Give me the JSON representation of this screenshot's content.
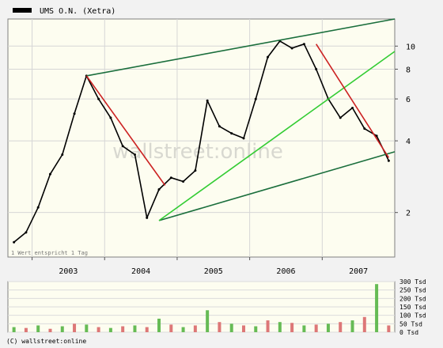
{
  "header": {
    "legend_label": "UMS O.N. (Xetra)"
  },
  "footer": {
    "copyright": "(C) wallstreet:online"
  },
  "price_panel": {
    "note": "1 Wert entspricht 1 Tag",
    "watermark": "wallstreet:online"
  },
  "colors": {
    "background": "#fdfdf0",
    "page": "#f2f2f2",
    "price": "#000000",
    "trend_outer": "#1a6e3c",
    "trend_inner": "#33cc33",
    "trend_down": "#cc2222",
    "volume_up": "#66bb55",
    "volume_down": "#dd7777"
  },
  "chart_data": [
    {
      "type": "line",
      "title": "",
      "series": [
        {
          "name": "UMS O.N. (Xetra)",
          "x": [
            "2002-10",
            "2002-12",
            "2003-02",
            "2003-04",
            "2003-06",
            "2003-08",
            "2003-10",
            "2003-12",
            "2004-02",
            "2004-04",
            "2004-06",
            "2004-08",
            "2004-10",
            "2004-12",
            "2005-02",
            "2005-04",
            "2005-06",
            "2005-08",
            "2005-10",
            "2005-12",
            "2006-02",
            "2006-04",
            "2006-06",
            "2006-08",
            "2006-10",
            "2006-12",
            "2007-02",
            "2007-04",
            "2007-06",
            "2007-08",
            "2007-10",
            "2007-12"
          ],
          "y": [
            1.5,
            1.65,
            2.1,
            2.9,
            3.5,
            5.2,
            7.5,
            6.0,
            5.0,
            3.8,
            3.5,
            1.9,
            2.5,
            2.8,
            2.7,
            3.0,
            5.9,
            4.6,
            4.3,
            4.1,
            6.0,
            9.0,
            10.5,
            9.8,
            10.2,
            8.0,
            6.0,
            5.0,
            5.5,
            4.5,
            4.2,
            3.3
          ]
        }
      ],
      "x_tick_labels": [
        "2003",
        "2004",
        "2005",
        "2006",
        "2007"
      ],
      "y_tick_labels": [
        "2",
        "4",
        "6",
        "8",
        "10"
      ],
      "y_scale": "log",
      "ylim": [
        1.3,
        13
      ],
      "grid": true,
      "legend": "top-left",
      "trend_lines": [
        {
          "kind": "channel-upper",
          "from": [
            "2003-10",
            7.5
          ],
          "to": [
            "2008-01",
            14.0
          ]
        },
        {
          "kind": "channel-lower",
          "from": [
            "2004-10",
            1.85
          ],
          "to": [
            "2008-01",
            3.6
          ]
        },
        {
          "kind": "uptrend",
          "from": [
            "2004-10",
            1.85
          ],
          "to": [
            "2008-01",
            9.5
          ]
        },
        {
          "kind": "downtrend",
          "from": [
            "2003-10",
            7.5
          ],
          "to": [
            "2004-11",
            2.6
          ]
        },
        {
          "kind": "downtrend",
          "from": [
            "2006-12",
            10.2
          ],
          "to": [
            "2007-12",
            3.4
          ]
        }
      ]
    },
    {
      "type": "bar",
      "title": "",
      "ylabel": "Tsd",
      "y_tick_labels": [
        "0 Tsd",
        "50 Tsd",
        "100 Tsd",
        "150 Tsd",
        "200 Tsd",
        "250 Tsd",
        "300 Tsd"
      ],
      "ylim": [
        0,
        300
      ],
      "categories": [
        "2002-10",
        "2002-12",
        "2003-02",
        "2003-04",
        "2003-06",
        "2003-08",
        "2003-10",
        "2003-12",
        "2004-02",
        "2004-04",
        "2004-06",
        "2004-08",
        "2004-10",
        "2004-12",
        "2005-02",
        "2005-04",
        "2005-06",
        "2005-08",
        "2005-10",
        "2005-12",
        "2006-02",
        "2006-04",
        "2006-06",
        "2006-08",
        "2006-10",
        "2006-12",
        "2007-02",
        "2007-04",
        "2007-06",
        "2007-08",
        "2007-10",
        "2007-12"
      ],
      "values": [
        30,
        25,
        40,
        20,
        35,
        50,
        45,
        30,
        25,
        35,
        40,
        30,
        80,
        45,
        30,
        40,
        130,
        60,
        50,
        40,
        35,
        70,
        60,
        55,
        40,
        45,
        50,
        60,
        70,
        90,
        285,
        40
      ]
    }
  ]
}
